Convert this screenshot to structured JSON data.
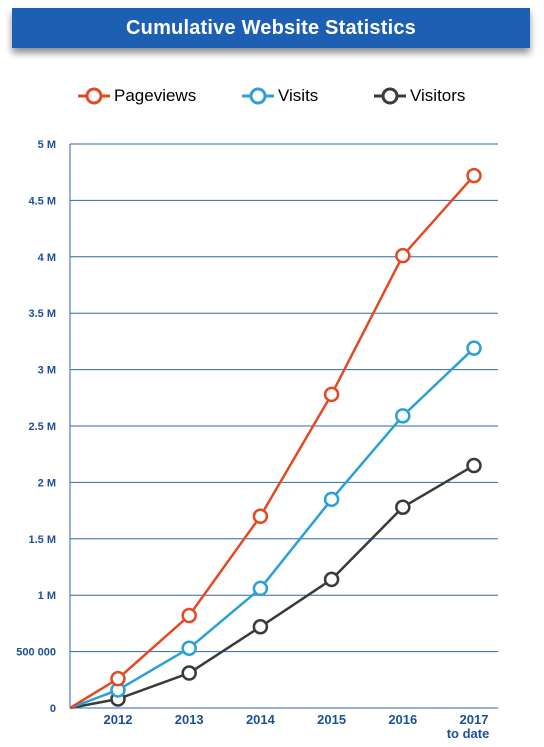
{
  "title": "Cumulative Website Statistics",
  "legend": [
    {
      "name": "Pageviews",
      "color": "#e24a25"
    },
    {
      "name": "Visits",
      "color": "#2aa0d8"
    },
    {
      "name": "Visitors",
      "color": "#3a3a3a"
    }
  ],
  "chart_data": {
    "type": "line",
    "title": "Cumulative Website Statistics",
    "xlabel": "",
    "ylabel": "",
    "categories": [
      "2012",
      "2013",
      "2014",
      "2015",
      "2016",
      "2017 to date"
    ],
    "x_tick_labels": [
      [
        "2012"
      ],
      [
        "2013"
      ],
      [
        "2014"
      ],
      [
        "2015"
      ],
      [
        "2016"
      ],
      [
        "2017",
        "to date"
      ]
    ],
    "ylim": [
      0,
      5000000
    ],
    "y_ticks": [
      0,
      500000,
      1000000,
      1500000,
      2000000,
      2500000,
      3000000,
      3500000,
      4000000,
      4500000,
      5000000
    ],
    "y_tick_labels": [
      "0",
      "500 000",
      "1 M",
      "1.5 M",
      "2 M",
      "2.5 M",
      "3 M",
      "3.5 M",
      "4 M",
      "4.5 M",
      "5 M"
    ],
    "grid": "horizontal",
    "legend_position": "top",
    "series": [
      {
        "name": "Pageviews",
        "color": "#e24a25",
        "values": [
          260000,
          820000,
          1700000,
          2780000,
          4010000,
          4720000
        ]
      },
      {
        "name": "Visits",
        "color": "#2aa0d8",
        "values": [
          160000,
          530000,
          1060000,
          1850000,
          2590000,
          3190000
        ]
      },
      {
        "name": "Visitors",
        "color": "#3a3a3a",
        "values": [
          80000,
          310000,
          720000,
          1140000,
          1780000,
          2150000
        ]
      }
    ]
  }
}
